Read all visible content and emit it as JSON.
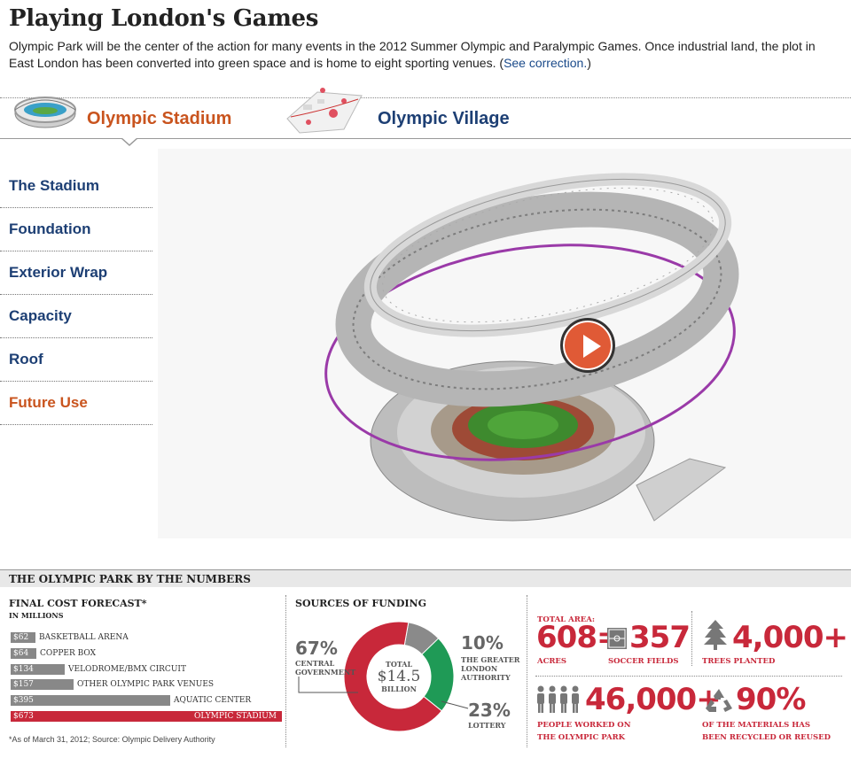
{
  "header": {
    "title": "Playing London's Games",
    "intro": "Olympic Park will be the center of the action for many events in the 2012 Summer Olympic and Paralympic Games. Once industrial land, the plot in East London has been converted into green space and is home to eight sporting venues.",
    "correction_open": "(",
    "correction_link": "See correction.",
    "correction_close": ")"
  },
  "tabs": [
    {
      "label": "Olympic Stadium",
      "active": true
    },
    {
      "label": "Olympic Village",
      "active": false
    }
  ],
  "menu": [
    {
      "label": "The Stadium"
    },
    {
      "label": "Foundation"
    },
    {
      "label": "Exterior Wrap"
    },
    {
      "label": "Capacity"
    },
    {
      "label": "Roof"
    },
    {
      "label": "Future Use"
    }
  ],
  "numbers": {
    "header": "THE OLYMPIC PARK BY THE NUMBERS",
    "cost": {
      "title": "FINAL COST FORECAST*",
      "subtitle": "IN MILLIONS",
      "footnote": "*As of March 31, 2012; Source: Olympic Delivery Authority",
      "chart_data": {
        "type": "bar",
        "categories": [
          "BASKETBALL ARENA",
          "COPPER BOX",
          "VELODROME/BMX CIRCUIT",
          "OTHER OLYMPIC PARK VENUES",
          "AQUATIC CENTER",
          "OLYMPIC STADIUM"
        ],
        "values": [
          62,
          64,
          134,
          157,
          395,
          673
        ],
        "value_labels": [
          "$62",
          "$64",
          "$134",
          "$157",
          "$395",
          "$673"
        ],
        "highlight": "OLYMPIC STADIUM",
        "colors": {
          "bar": "#888888",
          "highlight": "#c8283a"
        }
      }
    },
    "funding": {
      "title": "SOURCES OF FUNDING",
      "center_top": "TOTAL",
      "center_value": "$14.5",
      "center_bottom": "BILLION",
      "chart_data": {
        "type": "pie",
        "categories": [
          "CENTRAL GOVERNMENT",
          "THE GREATER LONDON AUTHORITY",
          "LOTTERY"
        ],
        "values": [
          67,
          10,
          23
        ],
        "value_labels": [
          "67%",
          "10%",
          "23%"
        ],
        "colors": [
          "#c8283a",
          "#8a8a8a",
          "#1f9a56"
        ]
      },
      "labels": {
        "government_pct": "67%",
        "government_lbl1": "CENTRAL",
        "government_lbl2": "GOVERNMENT",
        "gla_pct": "10%",
        "gla_lbl1": "THE GREATER",
        "gla_lbl2": "LONDON",
        "gla_lbl3": "AUTHORITY",
        "lottery_pct": "23%",
        "lottery_lbl": "LOTTERY"
      }
    },
    "stats": {
      "area_label": "TOTAL AREA:",
      "acres_value": "608=",
      "acres_label": "ACRES",
      "fields_value": "357",
      "fields_label": "SOCCER FIELDS",
      "trees_value": "4,000+",
      "trees_label": "TREES PLANTED",
      "people_value": "46,000+",
      "people_label1": "PEOPLE WORKED ON",
      "people_label2": "THE OLYMPIC PARK",
      "recycled_value": "90%",
      "recycled_label1": "OF THE MATERIALS HAS",
      "recycled_label2": "BEEN RECYCLED OR REUSED"
    }
  }
}
